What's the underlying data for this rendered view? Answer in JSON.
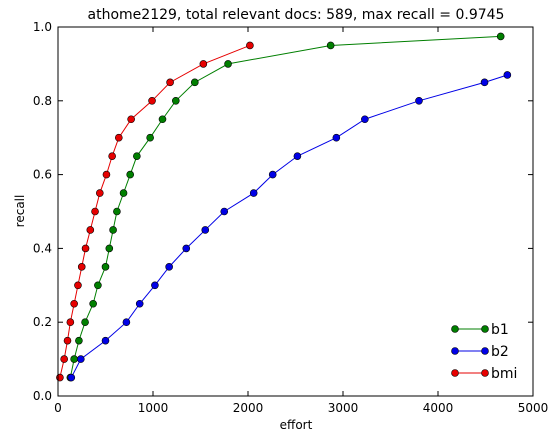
{
  "chart_data": {
    "type": "line",
    "title": "athome2129, total relevant docs: 589, max recall = 0.9745",
    "xlabel": "effort",
    "ylabel": "recall",
    "xlim": [
      0,
      5000
    ],
    "ylim": [
      0.0,
      1.0
    ],
    "xticks": [
      "0",
      "1000",
      "2000",
      "3000",
      "4000",
      "5000"
    ],
    "yticks": [
      "0.0",
      "0.2",
      "0.4",
      "0.6",
      "0.8",
      "1.0"
    ],
    "grid": false,
    "legend_position": "lower-right",
    "series": [
      {
        "name": "b1",
        "color": "#007f00",
        "x": [
          130,
          170,
          220,
          285,
          370,
          420,
          500,
          540,
          580,
          620,
          690,
          760,
          830,
          970,
          1100,
          1240,
          1440,
          1790,
          2870,
          4660
        ],
        "y": [
          0.05,
          0.1,
          0.15,
          0.2,
          0.25,
          0.3,
          0.35,
          0.4,
          0.45,
          0.5,
          0.55,
          0.6,
          0.65,
          0.7,
          0.75,
          0.8,
          0.85,
          0.9,
          0.95,
          0.9745
        ]
      },
      {
        "name": "b2",
        "color": "#0000e6",
        "x": [
          140,
          240,
          500,
          720,
          860,
          1020,
          1170,
          1350,
          1550,
          1750,
          2060,
          2260,
          2520,
          2930,
          3230,
          3800,
          4490,
          4730
        ],
        "y": [
          0.05,
          0.1,
          0.15,
          0.2,
          0.25,
          0.3,
          0.35,
          0.4,
          0.45,
          0.5,
          0.55,
          0.6,
          0.65,
          0.7,
          0.75,
          0.8,
          0.85,
          0.87
        ]
      },
      {
        "name": "bmi",
        "color": "#e60000",
        "x": [
          20,
          65,
          100,
          130,
          170,
          210,
          250,
          290,
          340,
          390,
          440,
          510,
          570,
          640,
          770,
          990,
          1180,
          1530,
          2020
        ],
        "y": [
          0.05,
          0.1,
          0.15,
          0.2,
          0.25,
          0.3,
          0.35,
          0.4,
          0.45,
          0.5,
          0.55,
          0.6,
          0.65,
          0.7,
          0.75,
          0.8,
          0.85,
          0.9,
          0.95
        ]
      }
    ]
  }
}
